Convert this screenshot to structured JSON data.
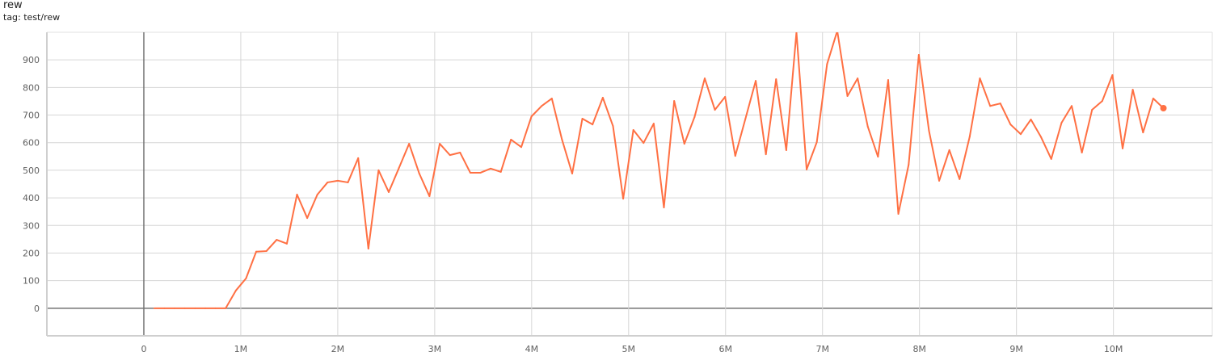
{
  "header": {
    "title": "rew",
    "tag": "tag: test/rew"
  },
  "chart_data": {
    "type": "line",
    "title": "rew",
    "subtitle": "tag: test/rew",
    "xlabel": "",
    "ylabel": "",
    "xlim": [
      -1000000,
      11020000
    ],
    "ylim": [
      -100,
      1000
    ],
    "grid": true,
    "legend": "none",
    "color": "#ff7043",
    "x_ticks": [
      {
        "v": 0,
        "label": "0"
      },
      {
        "v": 1000000,
        "label": "1M"
      },
      {
        "v": 2000000,
        "label": "2M"
      },
      {
        "v": 3000000,
        "label": "3M"
      },
      {
        "v": 4000000,
        "label": "4M"
      },
      {
        "v": 5000000,
        "label": "5M"
      },
      {
        "v": 6000000,
        "label": "6M"
      },
      {
        "v": 7000000,
        "label": "7M"
      },
      {
        "v": 8000000,
        "label": "8M"
      },
      {
        "v": 9000000,
        "label": "9M"
      },
      {
        "v": 10000000,
        "label": "10M"
      }
    ],
    "y_ticks": [
      {
        "v": 0,
        "label": "0"
      },
      {
        "v": 100,
        "label": "100"
      },
      {
        "v": 200,
        "label": "200"
      },
      {
        "v": 300,
        "label": "300"
      },
      {
        "v": 400,
        "label": "400"
      },
      {
        "v": 500,
        "label": "500"
      },
      {
        "v": 600,
        "label": "600"
      },
      {
        "v": 700,
        "label": "700"
      },
      {
        "v": 800,
        "label": "800"
      },
      {
        "v": 900,
        "label": "900"
      }
    ],
    "x_millions": [
      0.108,
      0.213,
      0.318,
      0.423,
      0.529,
      0.634,
      0.739,
      0.844,
      0.949,
      1.054,
      1.159,
      1.264,
      1.37,
      1.475,
      1.58,
      1.685,
      1.79,
      1.895,
      2.0,
      2.105,
      2.211,
      2.316,
      2.421,
      2.526,
      2.631,
      2.736,
      2.841,
      2.946,
      3.052,
      3.157,
      3.262,
      3.367,
      3.472,
      3.577,
      3.682,
      3.787,
      3.893,
      3.998,
      4.103,
      4.208,
      4.313,
      4.418,
      4.523,
      4.628,
      4.734,
      4.839,
      4.944,
      5.049,
      5.154,
      5.259,
      5.364,
      5.47,
      5.575,
      5.68,
      5.785,
      5.89,
      5.995,
      6.1,
      6.205,
      6.311,
      6.416,
      6.521,
      6.626,
      6.731,
      6.836,
      6.941,
      7.047,
      7.152,
      7.257,
      7.362,
      7.467,
      7.572,
      7.677,
      7.782,
      7.888,
      7.993,
      8.098,
      8.203,
      8.308,
      8.413,
      8.518,
      8.623,
      8.729,
      8.834,
      8.939,
      9.044,
      9.149,
      9.254,
      9.359,
      9.465,
      9.57,
      9.675,
      9.78,
      9.885,
      9.99,
      10.095,
      10.2,
      10.306,
      10.411,
      10.516
    ],
    "y": [
      0,
      0,
      0,
      0,
      0,
      0,
      0,
      0,
      64,
      108,
      205,
      207,
      248,
      234,
      412,
      327,
      412,
      456,
      462,
      456,
      544,
      216,
      500,
      421,
      508,
      596,
      488,
      406,
      596,
      555,
      564,
      491,
      491,
      506,
      494,
      611,
      584,
      695,
      733,
      760,
      611,
      488,
      687,
      666,
      763,
      660,
      397,
      646,
      599,
      669,
      365,
      751,
      596,
      693,
      833,
      719,
      766,
      552,
      687,
      824,
      558,
      830,
      573,
      1000,
      503,
      602,
      885,
      1005,
      769,
      833,
      658,
      549,
      827,
      342,
      520,
      918,
      643,
      462,
      573,
      468,
      622,
      833,
      733,
      742,
      666,
      631,
      684,
      620,
      541,
      672,
      733,
      564,
      719,
      751,
      845,
      579,
      792,
      637,
      760,
      725
    ]
  }
}
